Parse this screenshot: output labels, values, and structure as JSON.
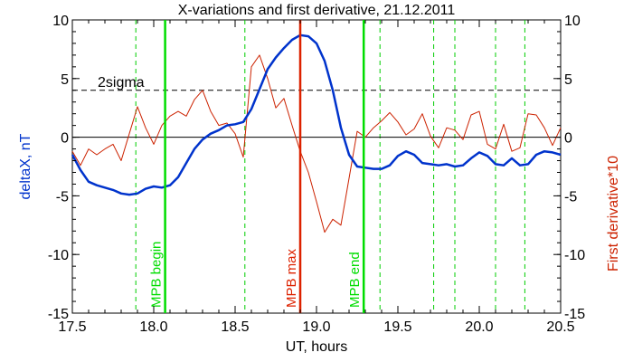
{
  "chart_data": {
    "type": "line",
    "title": "X-variations and first derivative, 21.12.2011",
    "xlabel": "UT, hours",
    "ylabel_left": "deltaX, nT",
    "ylabel_right": "First derivative*10",
    "xlim": [
      17.5,
      20.5
    ],
    "ylim": [
      -15,
      10
    ],
    "xticks": [
      17.5,
      18.0,
      18.5,
      19.0,
      19.5,
      20.0,
      20.5
    ],
    "xtick_labels": [
      "17.5",
      "18.0",
      "18.5",
      "19.0",
      "19.5",
      "20.0",
      "20.5"
    ],
    "yticks": [
      -15,
      -10,
      -5,
      0,
      5,
      10
    ],
    "ytick_labels_left": [
      "-15",
      "-10",
      "-5",
      "0",
      "5",
      "10"
    ],
    "ytick_labels_right": [
      "-15",
      "-10",
      "-5",
      "0",
      "5",
      "10"
    ],
    "grid": false,
    "threshold": {
      "label": "2sigma",
      "y": 4,
      "style": "dashed"
    },
    "zero_line": 0,
    "series": [
      {
        "color": "#0033cc",
        "axis": "left",
        "x": [
          17.5,
          17.55,
          17.6,
          17.65,
          17.7,
          17.75,
          17.8,
          17.85,
          17.9,
          17.95,
          18.0,
          18.05,
          18.1,
          18.15,
          18.2,
          18.25,
          18.3,
          18.35,
          18.4,
          18.45,
          18.5,
          18.55,
          18.6,
          18.65,
          18.7,
          18.75,
          18.8,
          18.85,
          18.9,
          18.95,
          19.0,
          19.05,
          19.1,
          19.15,
          19.2,
          19.25,
          19.3,
          19.35,
          19.4,
          19.45,
          19.5,
          19.55,
          19.6,
          19.65,
          19.7,
          19.75,
          19.8,
          19.85,
          19.9,
          19.95,
          20.0,
          20.05,
          20.1,
          20.15,
          20.2,
          20.25,
          20.3,
          20.35,
          20.4,
          20.45,
          20.5
        ],
        "y": [
          -1.5,
          -2.8,
          -3.8,
          -4.1,
          -4.3,
          -4.5,
          -4.8,
          -4.9,
          -4.8,
          -4.4,
          -4.2,
          -4.3,
          -4.1,
          -3.4,
          -2.2,
          -1.0,
          -0.2,
          0.3,
          0.6,
          1.0,
          1.1,
          1.3,
          2.4,
          4.1,
          5.8,
          6.8,
          7.6,
          8.3,
          8.7,
          8.6,
          8.0,
          6.5,
          4.0,
          0.8,
          -1.5,
          -2.5,
          -2.6,
          -2.7,
          -2.7,
          -2.4,
          -1.6,
          -1.2,
          -1.5,
          -2.2,
          -2.3,
          -2.4,
          -2.3,
          -2.5,
          -2.4,
          -1.8,
          -1.3,
          -1.6,
          -2.3,
          -2.4,
          -1.8,
          -2.4,
          -2.3,
          -1.5,
          -1.2,
          -1.3,
          -1.5
        ]
      },
      {
        "color": "#cc2200",
        "axis": "right",
        "x": [
          17.5,
          17.55,
          17.6,
          17.65,
          17.7,
          17.75,
          17.8,
          17.85,
          17.9,
          17.95,
          18.0,
          18.05,
          18.1,
          18.15,
          18.2,
          18.25,
          18.3,
          18.35,
          18.4,
          18.45,
          18.5,
          18.55,
          18.6,
          18.65,
          18.7,
          18.75,
          18.8,
          18.85,
          18.9,
          18.95,
          19.0,
          19.05,
          19.1,
          19.15,
          19.2,
          19.25,
          19.3,
          19.35,
          19.4,
          19.45,
          19.5,
          19.55,
          19.6,
          19.65,
          19.7,
          19.75,
          19.8,
          19.85,
          19.9,
          19.95,
          20.0,
          20.05,
          20.1,
          20.15,
          20.2,
          20.25,
          20.3,
          20.35,
          20.4,
          20.45,
          20.5
        ],
        "y": [
          -1.2,
          -2.4,
          -1.0,
          -1.5,
          -1.0,
          -0.6,
          -2.0,
          0.3,
          2.6,
          0.8,
          -0.6,
          1.0,
          1.8,
          2.2,
          1.8,
          3.2,
          4.0,
          2.2,
          1.0,
          1.2,
          0.3,
          -1.7,
          6.0,
          7.0,
          5.0,
          2.5,
          3.3,
          1.0,
          -1.2,
          -3.0,
          -5.5,
          -8.1,
          -7.0,
          -7.5,
          -3.5,
          0.5,
          0.0,
          0.8,
          1.4,
          2.1,
          1.3,
          0.2,
          0.7,
          2.0,
          0.1,
          -0.9,
          0.8,
          0.6,
          -0.2,
          1.9,
          2.2,
          -0.6,
          -1.0,
          1.1,
          -1.2,
          -0.9,
          2.0,
          1.9,
          0.8,
          -0.7,
          0.8
        ]
      }
    ],
    "vertical_markers": [
      {
        "x": 18.07,
        "label": "MPB begin",
        "color": "#00dd00",
        "style": "solid"
      },
      {
        "x": 18.9,
        "label": "MPB max",
        "color": "#dd2200",
        "style": "solid"
      },
      {
        "x": 19.29,
        "label": "MPB end",
        "color": "#00dd00",
        "style": "solid"
      }
    ],
    "dashed_markers": {
      "color": "#00cc00",
      "x": [
        17.89,
        18.56,
        19.39,
        19.72,
        19.85,
        20.1,
        20.28
      ]
    }
  }
}
